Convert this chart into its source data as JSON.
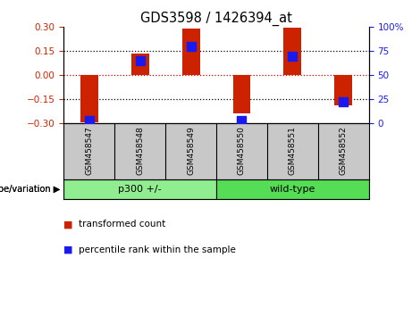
{
  "title": "GDS3598 / 1426394_at",
  "samples": [
    "GSM458547",
    "GSM458548",
    "GSM458549",
    "GSM458550",
    "GSM458551",
    "GSM458552"
  ],
  "transformed_count": [
    -0.295,
    0.135,
    0.29,
    -0.24,
    0.295,
    -0.19
  ],
  "percentile_rank": [
    3,
    65,
    80,
    3,
    70,
    22
  ],
  "groups": [
    {
      "label": "p300 +/-",
      "start": 0,
      "end": 2,
      "color": "#90ee90"
    },
    {
      "label": "wild-type",
      "start": 3,
      "end": 5,
      "color": "#55dd55"
    }
  ],
  "group_label_prefix": "genotype/variation",
  "ylim_left": [
    -0.3,
    0.3
  ],
  "ylim_right": [
    0,
    100
  ],
  "yticks_left": [
    -0.3,
    -0.15,
    0,
    0.15,
    0.3
  ],
  "yticks_right": [
    0,
    25,
    50,
    75,
    100
  ],
  "hlines_dotted": [
    -0.15,
    0.15
  ],
  "hline_zero_color": "#cc0000",
  "bar_color": "#cc2200",
  "dot_color": "#1a1aee",
  "bar_width": 0.35,
  "dot_size": 55,
  "legend_items": [
    {
      "label": "transformed count",
      "color": "#cc2200"
    },
    {
      "label": "percentile rank within the sample",
      "color": "#1a1aee"
    }
  ],
  "background_color": "#ffffff",
  "plot_bg": "#ffffff",
  "zero_line_color": "#cc0000",
  "tick_label_color_left": "#cc2200",
  "tick_label_color_right": "#1a1aee",
  "label_bg": "#c8c8c8",
  "title_fontsize": 10.5
}
